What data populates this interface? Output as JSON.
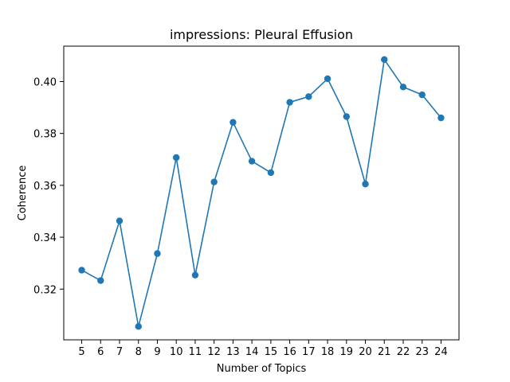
{
  "chart_data": {
    "type": "line",
    "title": "impressions: Pleural Effusion",
    "xlabel": "Number of Topics",
    "ylabel": "Coherence",
    "x": [
      5,
      6,
      7,
      8,
      9,
      10,
      11,
      12,
      13,
      14,
      15,
      16,
      17,
      18,
      19,
      20,
      21,
      22,
      23,
      24
    ],
    "series": [
      {
        "values": [
          0.3273,
          0.3233,
          0.3463,
          0.3056,
          0.3337,
          0.3707,
          0.3254,
          0.3613,
          0.3843,
          0.3693,
          0.3649,
          0.392,
          0.3942,
          0.4011,
          0.3865,
          0.3605,
          0.4085,
          0.3979,
          0.3949,
          0.386
        ],
        "color": "#1f77b4",
        "marker": "circle"
      }
    ],
    "xticks": [
      5,
      6,
      7,
      8,
      9,
      10,
      11,
      12,
      13,
      14,
      15,
      16,
      17,
      18,
      19,
      20,
      21,
      22,
      23,
      24
    ],
    "yticks": [
      "0.32",
      "0.34",
      "0.36",
      "0.38",
      "0.40"
    ],
    "xlim": [
      4.05,
      24.95
    ],
    "ylim": [
      0.30045,
      0.41365
    ],
    "grid": false,
    "legend": "none"
  }
}
